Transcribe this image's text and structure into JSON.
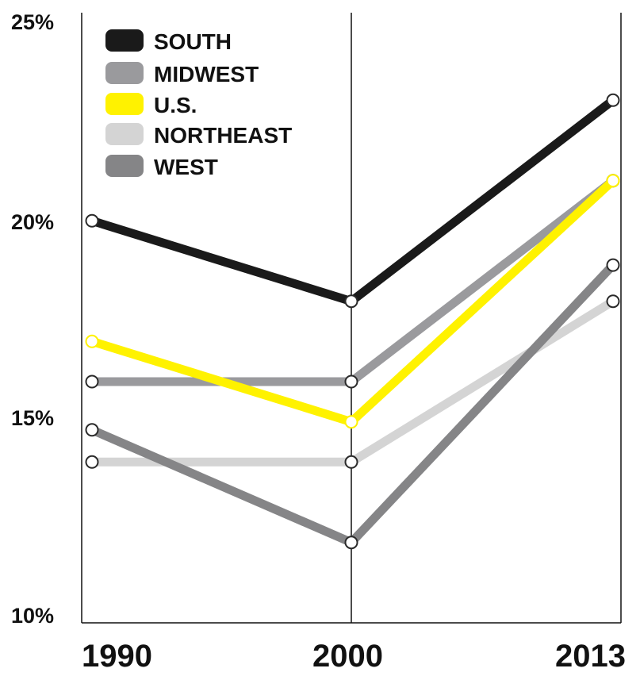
{
  "chart_data": {
    "type": "line",
    "title": "",
    "xlabel": "",
    "ylabel": "",
    "x": [
      "1990",
      "2000",
      "2013"
    ],
    "ylim": [
      10,
      25
    ],
    "yticks": [
      "10%",
      "15%",
      "20%",
      "25%"
    ],
    "grid": false,
    "legend_position": "top-left",
    "series": [
      {
        "name": "SOUTH",
        "color": "#1a1a1a",
        "values": [
          20.0,
          18.0,
          23.0
        ]
      },
      {
        "name": "MIDWEST",
        "color": "#9a9a9d",
        "values": [
          16.0,
          16.0,
          21.0
        ]
      },
      {
        "name": "U.S.",
        "color": "#fff200",
        "values": [
          17.0,
          15.0,
          21.0
        ]
      },
      {
        "name": "NORTHEAST",
        "color": "#d4d4d4",
        "values": [
          14.0,
          14.0,
          18.0
        ]
      },
      {
        "name": "WEST",
        "color": "#858587",
        "values": [
          14.8,
          12.0,
          18.9
        ]
      }
    ]
  }
}
